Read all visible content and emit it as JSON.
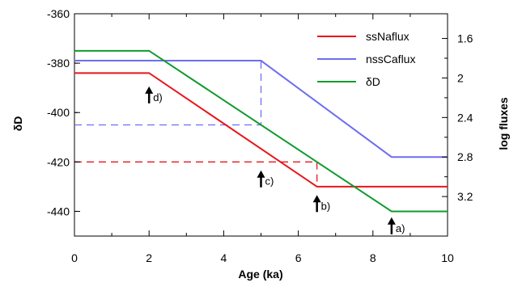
{
  "chart_data": {
    "type": "line",
    "xlabel": "Age (ka)",
    "ylabel": "δD",
    "y2label": "log fluxes",
    "xlim": [
      0,
      10
    ],
    "ylim": [
      -450,
      -360
    ],
    "y2lim": [
      1.35,
      3.6
    ],
    "xticks": [
      0,
      2,
      4,
      6,
      8,
      10
    ],
    "yticks": [
      -440,
      -420,
      -400,
      -380,
      -360
    ],
    "y2ticks": [
      1.6,
      2,
      2.4,
      2.8,
      3.2
    ],
    "grid": false,
    "legend_position": "top-right",
    "series": [
      {
        "name": "ssNaflux",
        "color": "#e8161b",
        "axis": "left",
        "x": [
          0,
          2,
          6.5,
          10
        ],
        "y": [
          -384,
          -384,
          -430,
          -430
        ]
      },
      {
        "name": "nssCaflux",
        "color": "#6d6ef0",
        "axis": "left",
        "x": [
          0,
          5,
          8.5,
          10
        ],
        "y": [
          -379,
          -379,
          -418,
          -418
        ]
      },
      {
        "name": "δD",
        "color": "#0f9b2e",
        "axis": "left",
        "x": [
          0,
          2,
          8.5,
          10
        ],
        "y": [
          -375,
          -375,
          -440,
          -440
        ]
      }
    ],
    "guides": [
      {
        "color": "#e8161b",
        "x": [
          0,
          6.5,
          6.5
        ],
        "y": [
          -420,
          -420,
          -430
        ]
      },
      {
        "color": "#6d6ef0",
        "x": [
          0,
          5,
          5
        ],
        "y": [
          -405,
          -405,
          -379
        ]
      }
    ],
    "annotations": [
      {
        "label": "d)",
        "x": 2,
        "y": -393
      },
      {
        "label": "c)",
        "x": 5,
        "y": -427
      },
      {
        "label": "b)",
        "x": 6.5,
        "y": -437
      },
      {
        "label": "a)",
        "x": 8.5,
        "y": -446
      }
    ]
  }
}
